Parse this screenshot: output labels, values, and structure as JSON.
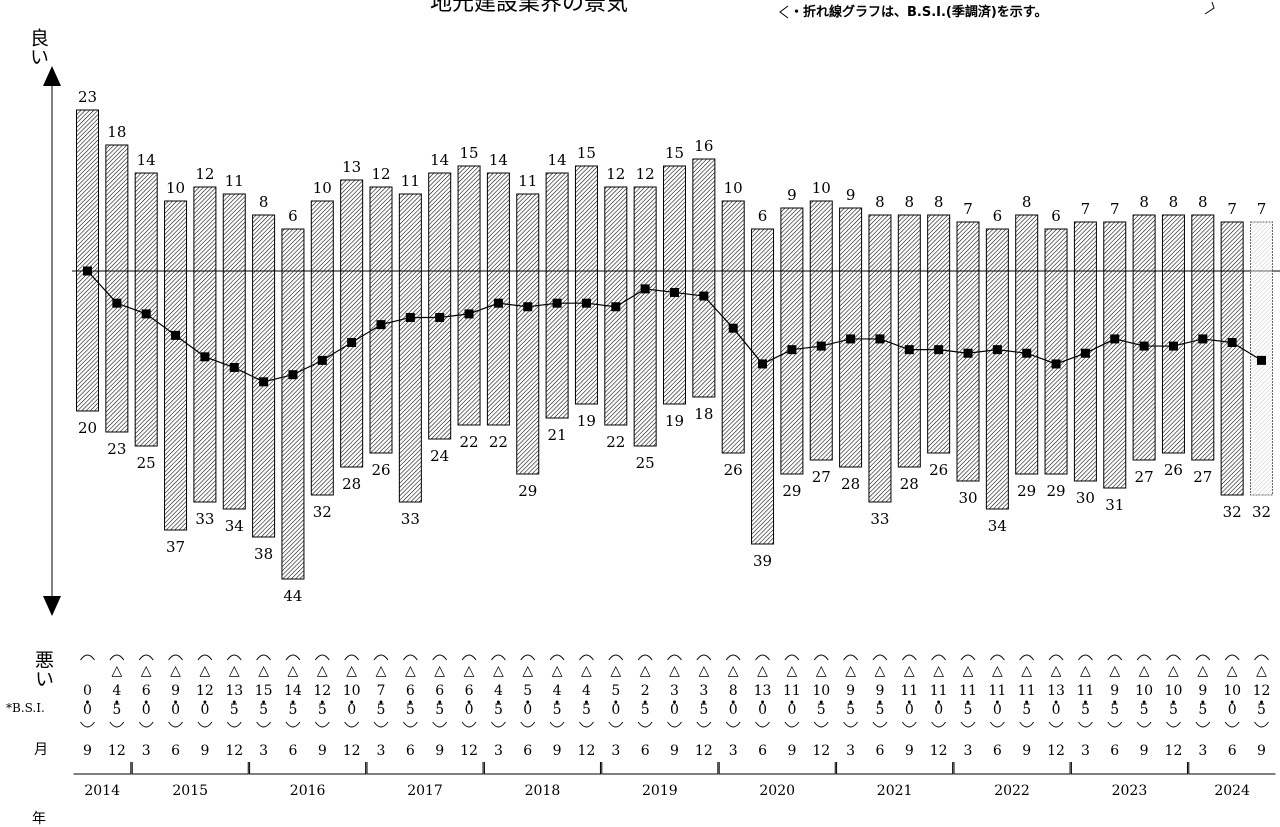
{
  "chart_data": {
    "type": "bar",
    "title": "地元建設業界の景気",
    "note": "・折れ線グラフは、B.S.I.(季調済)を示す。",
    "axis_top_label": "良い",
    "axis_bottom_label": "悪い",
    "row_labels": {
      "bsi": "*B.S.I.",
      "month": "月",
      "year": "年"
    },
    "months": [
      "9",
      "12",
      "3",
      "6",
      "9",
      "12",
      "3",
      "6",
      "9",
      "12",
      "3",
      "6",
      "9",
      "12",
      "3",
      "6",
      "9",
      "12",
      "3",
      "6",
      "9",
      "12",
      "3",
      "6",
      "9",
      "12",
      "3",
      "6",
      "9",
      "12",
      "3",
      "6",
      "9",
      "12",
      "3",
      "6",
      "9",
      "12",
      "3",
      "6",
      "9"
    ],
    "years": [
      {
        "label": "2014",
        "start": 0,
        "end": 1
      },
      {
        "label": "2015",
        "start": 2,
        "end": 5
      },
      {
        "label": "2016",
        "start": 6,
        "end": 9
      },
      {
        "label": "2017",
        "start": 10,
        "end": 13
      },
      {
        "label": "2018",
        "start": 14,
        "end": 17
      },
      {
        "label": "2019",
        "start": 18,
        "end": 21
      },
      {
        "label": "2020",
        "start": 22,
        "end": 25
      },
      {
        "label": "2021",
        "start": 26,
        "end": 29
      },
      {
        "label": "2022",
        "start": 30,
        "end": 33
      },
      {
        "label": "2023",
        "start": 34,
        "end": 37
      },
      {
        "label": "2024",
        "start": 38,
        "end": 40
      }
    ],
    "good": [
      23,
      18,
      14,
      10,
      12,
      11,
      8,
      6,
      10,
      13,
      12,
      11,
      14,
      15,
      14,
      11,
      14,
      15,
      12,
      12,
      15,
      16,
      10,
      6,
      9,
      10,
      9,
      8,
      8,
      8,
      7,
      6,
      8,
      6,
      7,
      7,
      8,
      8,
      8,
      7,
      7
    ],
    "bad": [
      20,
      23,
      25,
      37,
      33,
      34,
      38,
      44,
      32,
      28,
      26,
      33,
      24,
      22,
      22,
      29,
      21,
      19,
      22,
      25,
      19,
      18,
      26,
      39,
      29,
      27,
      28,
      33,
      28,
      26,
      30,
      34,
      29,
      29,
      30,
      31,
      27,
      26,
      27,
      32,
      32
    ],
    "bsi": [
      "0",
      "△4.5",
      "△6.0",
      "△9.0",
      "△12.0",
      "△13.5",
      "△15.5",
      "△14.5",
      "△12.5",
      "△10.0",
      "△7.5",
      "△6.5",
      "△6.5",
      "△6.0",
      "△4.5",
      "△5.0",
      "△4.5",
      "△4.5",
      "△5.0",
      "△2.5",
      "△3.0",
      "△3.5",
      "△8.0",
      "△13.0",
      "△11.0",
      "△10.5",
      "△9.5",
      "△9.5",
      "△11.0",
      "△11.0",
      "△11.5",
      "△11.0",
      "△11.5",
      "△13.0",
      "△11.5",
      "△9.5",
      "△10.5",
      "△10.5",
      "△9.5",
      "△10.0",
      "△12.5"
    ],
    "bsi_sign": [
      "",
      "△",
      "△",
      "△",
      "△",
      "△",
      "△",
      "△",
      "△",
      "△",
      "△",
      "△",
      "△",
      "△",
      "△",
      "△",
      "△",
      "△",
      "△",
      "△",
      "△",
      "△",
      "△",
      "△",
      "△",
      "△",
      "△",
      "△",
      "△",
      "△",
      "△",
      "△",
      "△",
      "△",
      "△",
      "△",
      "△",
      "△",
      "△",
      "△",
      "△"
    ],
    "bsi_int": [
      "0",
      "4",
      "6",
      "9",
      "12",
      "13",
      "15",
      "14",
      "12",
      "10",
      "7",
      "6",
      "6",
      "6",
      "4",
      "5",
      "4",
      "4",
      "5",
      "2",
      "3",
      "3",
      "8",
      "13",
      "11",
      "10",
      "9",
      "9",
      "11",
      "11",
      "11",
      "11",
      "11",
      "13",
      "11",
      "9",
      "10",
      "10",
      "9",
      "10",
      "12"
    ],
    "bsi_dec": [
      "0",
      "5",
      "0",
      "0",
      "0",
      "5",
      "5",
      "5",
      "5",
      "0",
      "5",
      "5",
      "5",
      "0",
      "5",
      "0",
      "5",
      "5",
      "0",
      "5",
      "0",
      "5",
      "0",
      "0",
      "0",
      "5",
      "5",
      "5",
      "0",
      "0",
      "5",
      "0",
      "5",
      "0",
      "5",
      "5",
      "5",
      "5",
      "5",
      "0",
      "5"
    ],
    "bsi_values": [
      0,
      -4.5,
      -6.0,
      -9.0,
      -12.0,
      -13.5,
      -15.5,
      -14.5,
      -12.5,
      -10.0,
      -7.5,
      -6.5,
      -6.5,
      -6.0,
      -4.5,
      -5.0,
      -4.5,
      -4.5,
      -5.0,
      -2.5,
      -3.0,
      -3.5,
      -8.0,
      -13.0,
      -11.0,
      -10.5,
      -9.5,
      -9.5,
      -11.0,
      -11.0,
      -11.5,
      -11.0,
      -11.5,
      -13.0,
      -11.5,
      -9.5,
      -10.5,
      -10.5,
      -9.5,
      -10.0,
      -12.5
    ],
    "colors": {
      "bar_hatch": "#000000",
      "line": "#000000",
      "text": "#000000"
    }
  }
}
